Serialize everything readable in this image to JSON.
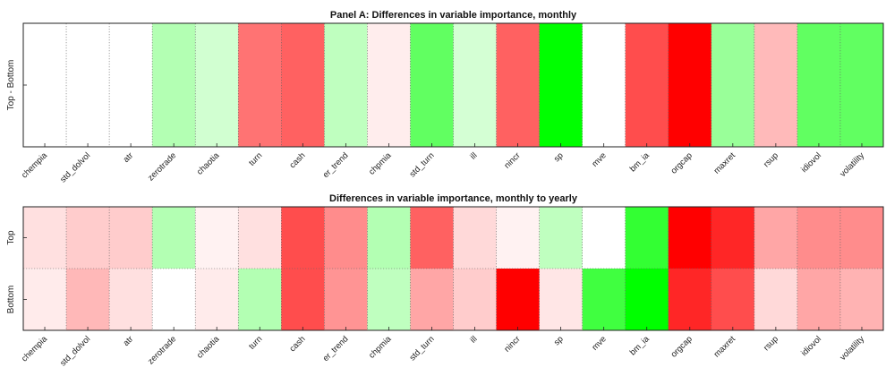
{
  "chart_data": [
    {
      "type": "heatmap",
      "title": "Panel A: Differences in variable importance, monthly",
      "xlabel": "",
      "ylabel": "Top - Bottom",
      "rows": [
        "Top - Bottom"
      ],
      "categories": [
        "chempia",
        "std_dolvol",
        "atr",
        "zerotrade",
        "chaotia",
        "turn",
        "cash",
        "er_trend",
        "chpmia",
        "std_turn",
        "ill",
        "nincr",
        "sp",
        "mve",
        "bm_ia",
        "orgcap",
        "maxret",
        "rsup",
        "idiovol",
        "volatility"
      ],
      "values": [
        [
          0.0,
          0.0,
          0.0,
          0.3,
          0.18,
          -0.55,
          -0.62,
          0.25,
          -0.07,
          0.62,
          0.17,
          -0.62,
          1.0,
          0.0,
          -0.7,
          -1.0,
          0.4,
          -0.27,
          0.62,
          0.62
        ]
      ],
      "color_scale": {
        "negative": "#ff0000",
        "zero": "#ffffff",
        "positive": "#00ff00"
      },
      "grid": true
    },
    {
      "type": "heatmap",
      "title": "Differences in variable importance, monthly to yearly",
      "xlabel": "",
      "ylabel": "",
      "rows": [
        "Top",
        "Bottom"
      ],
      "categories": [
        "chempia",
        "std_dolvol",
        "atr",
        "zerotrade",
        "chaotia",
        "turn",
        "cash",
        "er_trend",
        "chpmia",
        "std_turn",
        "ill",
        "nincr",
        "sp",
        "mve",
        "bm_ia",
        "orgcap",
        "maxret",
        "rsup",
        "idiovol",
        "volatility"
      ],
      "values": [
        [
          -0.12,
          -0.2,
          -0.2,
          0.3,
          -0.05,
          -0.12,
          -0.7,
          -0.45,
          0.3,
          -0.62,
          -0.15,
          -0.05,
          0.25,
          0.0,
          0.8,
          -1.0,
          -0.85,
          -0.35,
          -0.45,
          -0.45
        ],
        [
          -0.08,
          -0.28,
          -0.12,
          0.0,
          -0.08,
          0.3,
          -0.7,
          -0.42,
          0.25,
          -0.35,
          -0.2,
          -1.0,
          -0.1,
          0.75,
          1.0,
          -0.85,
          -0.7,
          -0.15,
          -0.35,
          -0.3
        ]
      ],
      "color_scale": {
        "negative": "#ff0000",
        "zero": "#ffffff",
        "positive": "#00ff00"
      },
      "grid": true
    }
  ]
}
